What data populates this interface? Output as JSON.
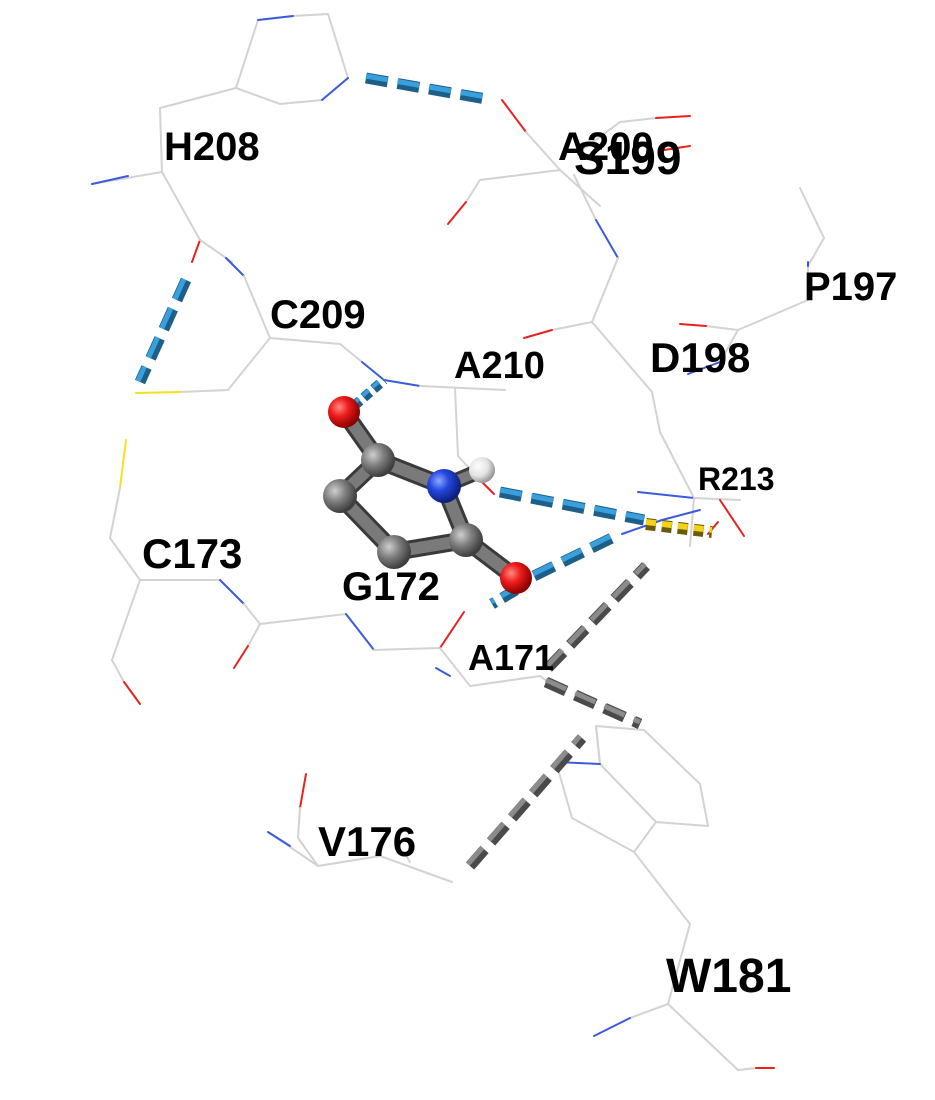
{
  "residues": [
    {
      "id": "h208",
      "label": "H208"
    },
    {
      "id": "a200",
      "label": "A200"
    },
    {
      "id": "s199",
      "label": "S199"
    },
    {
      "id": "p197",
      "label": "P197"
    },
    {
      "id": "c209",
      "label": "C209"
    },
    {
      "id": "a210",
      "label": "A210"
    },
    {
      "id": "d198",
      "label": "D198"
    },
    {
      "id": "r213",
      "label": "R213"
    },
    {
      "id": "c173",
      "label": "C173"
    },
    {
      "id": "g172",
      "label": "G172"
    },
    {
      "id": "a171",
      "label": "A171"
    },
    {
      "id": "v176",
      "label": "V176"
    },
    {
      "id": "w181",
      "label": "W181"
    }
  ],
  "colors": {
    "carbon_stick": "#d3d3d3",
    "nitrogen": "#3b5bdb",
    "oxygen": "#e8221f",
    "sulfur": "#f4e01e",
    "hbond": "#2f8fc9",
    "hydrophobic": "#707070",
    "salt_bridge": "#e8c51e",
    "ligand_carbon": "#7a7a7a",
    "ligand_nitrogen": "#1f3fd8",
    "ligand_oxygen": "#e00d0d",
    "ligand_hydrogen": "#e6e6e6"
  },
  "interactions": {
    "hbonds": 6,
    "hydrophobic": 4,
    "salt_bridges": 1
  }
}
